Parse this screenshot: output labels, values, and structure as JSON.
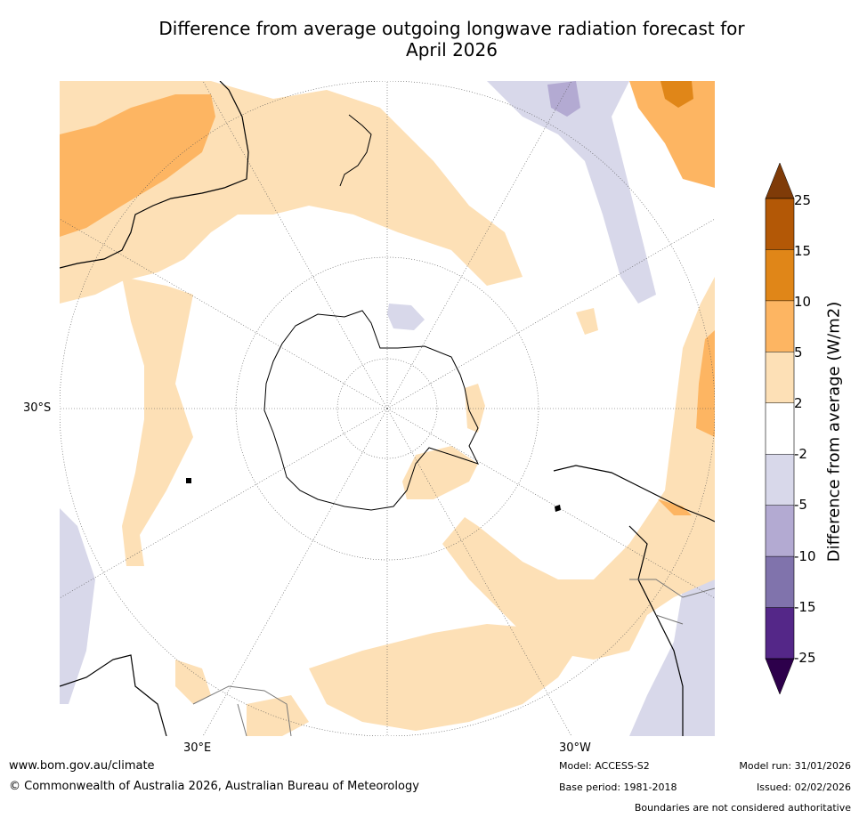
{
  "title": {
    "line1": "Difference from average outgoing longwave radiation forecast for",
    "line2": "April 2026"
  },
  "map": {
    "lat_label": "30°S",
    "lon_labels": [
      "30°E",
      "30°W"
    ],
    "colors": {
      "land_ok": "#ffffff",
      "pos_2_5": "#fde0b6",
      "pos_5_10": "#fdb562",
      "pos_10_15": "#e08618",
      "pos_15_25": "#b35806",
      "pos_gt25": "#7f3b08",
      "neg_2_5": "#d8d8ea",
      "neg_5_10": "#b3aad2",
      "neg_10_15": "#8073ac",
      "neg_15_25": "#542788",
      "neg_lt25": "#2d004b"
    }
  },
  "colorbar": {
    "label": "Difference from average (W/m2)",
    "ticks": [
      "25",
      "15",
      "10",
      "5",
      "2",
      "-2",
      "-5",
      "-10",
      "-15",
      "-25"
    ],
    "bins": [
      {
        "range": "15 to 25",
        "color": "#b35806"
      },
      {
        "range": "10 to 15",
        "color": "#e08618"
      },
      {
        "range": "5 to 10",
        "color": "#fdb562"
      },
      {
        "range": "2 to 5",
        "color": "#fde0b6"
      },
      {
        "range": "-2 to 2",
        "color": "#ffffff"
      },
      {
        "range": "-5 to -2",
        "color": "#d8d8ea"
      },
      {
        "range": "-10 to -5",
        "color": "#b3aad2"
      },
      {
        "range": "-15 to -10",
        "color": "#8073ac"
      },
      {
        "range": "-25 to -15",
        "color": "#542788"
      }
    ],
    "top_extend_color": "#7f3b08",
    "bottom_extend_color": "#2d004b"
  },
  "footer": {
    "website": "www.bom.gov.au/climate",
    "copyright": "© Commonwealth of Australia 2026, Australian Bureau of Meteorology",
    "model": "Model: ACCESS-S2",
    "base_period": "Base period: 1981-2018",
    "model_run": "Model run: 31/01/2026",
    "issued": "Issued: 02/02/2026",
    "disclaimer": "Boundaries are not considered authoritative"
  }
}
